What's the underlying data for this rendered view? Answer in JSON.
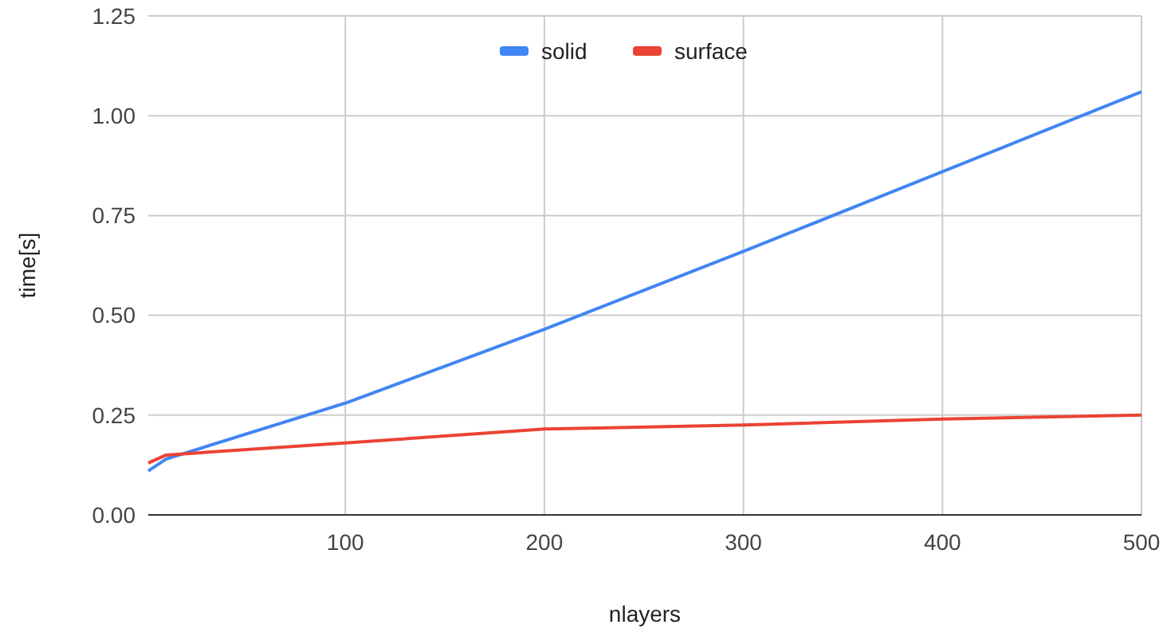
{
  "chart_data": {
    "type": "line",
    "xlabel": "nlayers",
    "ylabel": "time[s]",
    "x": [
      1,
      10,
      100,
      200,
      300,
      400,
      500
    ],
    "series": [
      {
        "name": "solid",
        "color": "#4285f4",
        "values": [
          0.11,
          0.14,
          0.28,
          0.465,
          0.66,
          0.86,
          1.06
        ]
      },
      {
        "name": "surface",
        "color": "#ea4335",
        "values": [
          0.13,
          0.15,
          0.18,
          0.215,
          0.225,
          0.24,
          0.25
        ]
      }
    ],
    "xlim": [
      1,
      500
    ],
    "xticks": [
      100,
      200,
      300,
      400,
      500
    ],
    "ylim": [
      0,
      1.25
    ],
    "yticks": [
      {
        "value": 0,
        "label": "0.00"
      },
      {
        "value": 0.25,
        "label": "0.25"
      },
      {
        "value": 0.5,
        "label": "0.50"
      },
      {
        "value": 0.75,
        "label": "0.75"
      },
      {
        "value": 1,
        "label": "1.00"
      },
      {
        "value": 1.25,
        "label": "1.25"
      }
    ],
    "grid": true,
    "legend": "top",
    "marker": "none",
    "line_style": "solid"
  }
}
